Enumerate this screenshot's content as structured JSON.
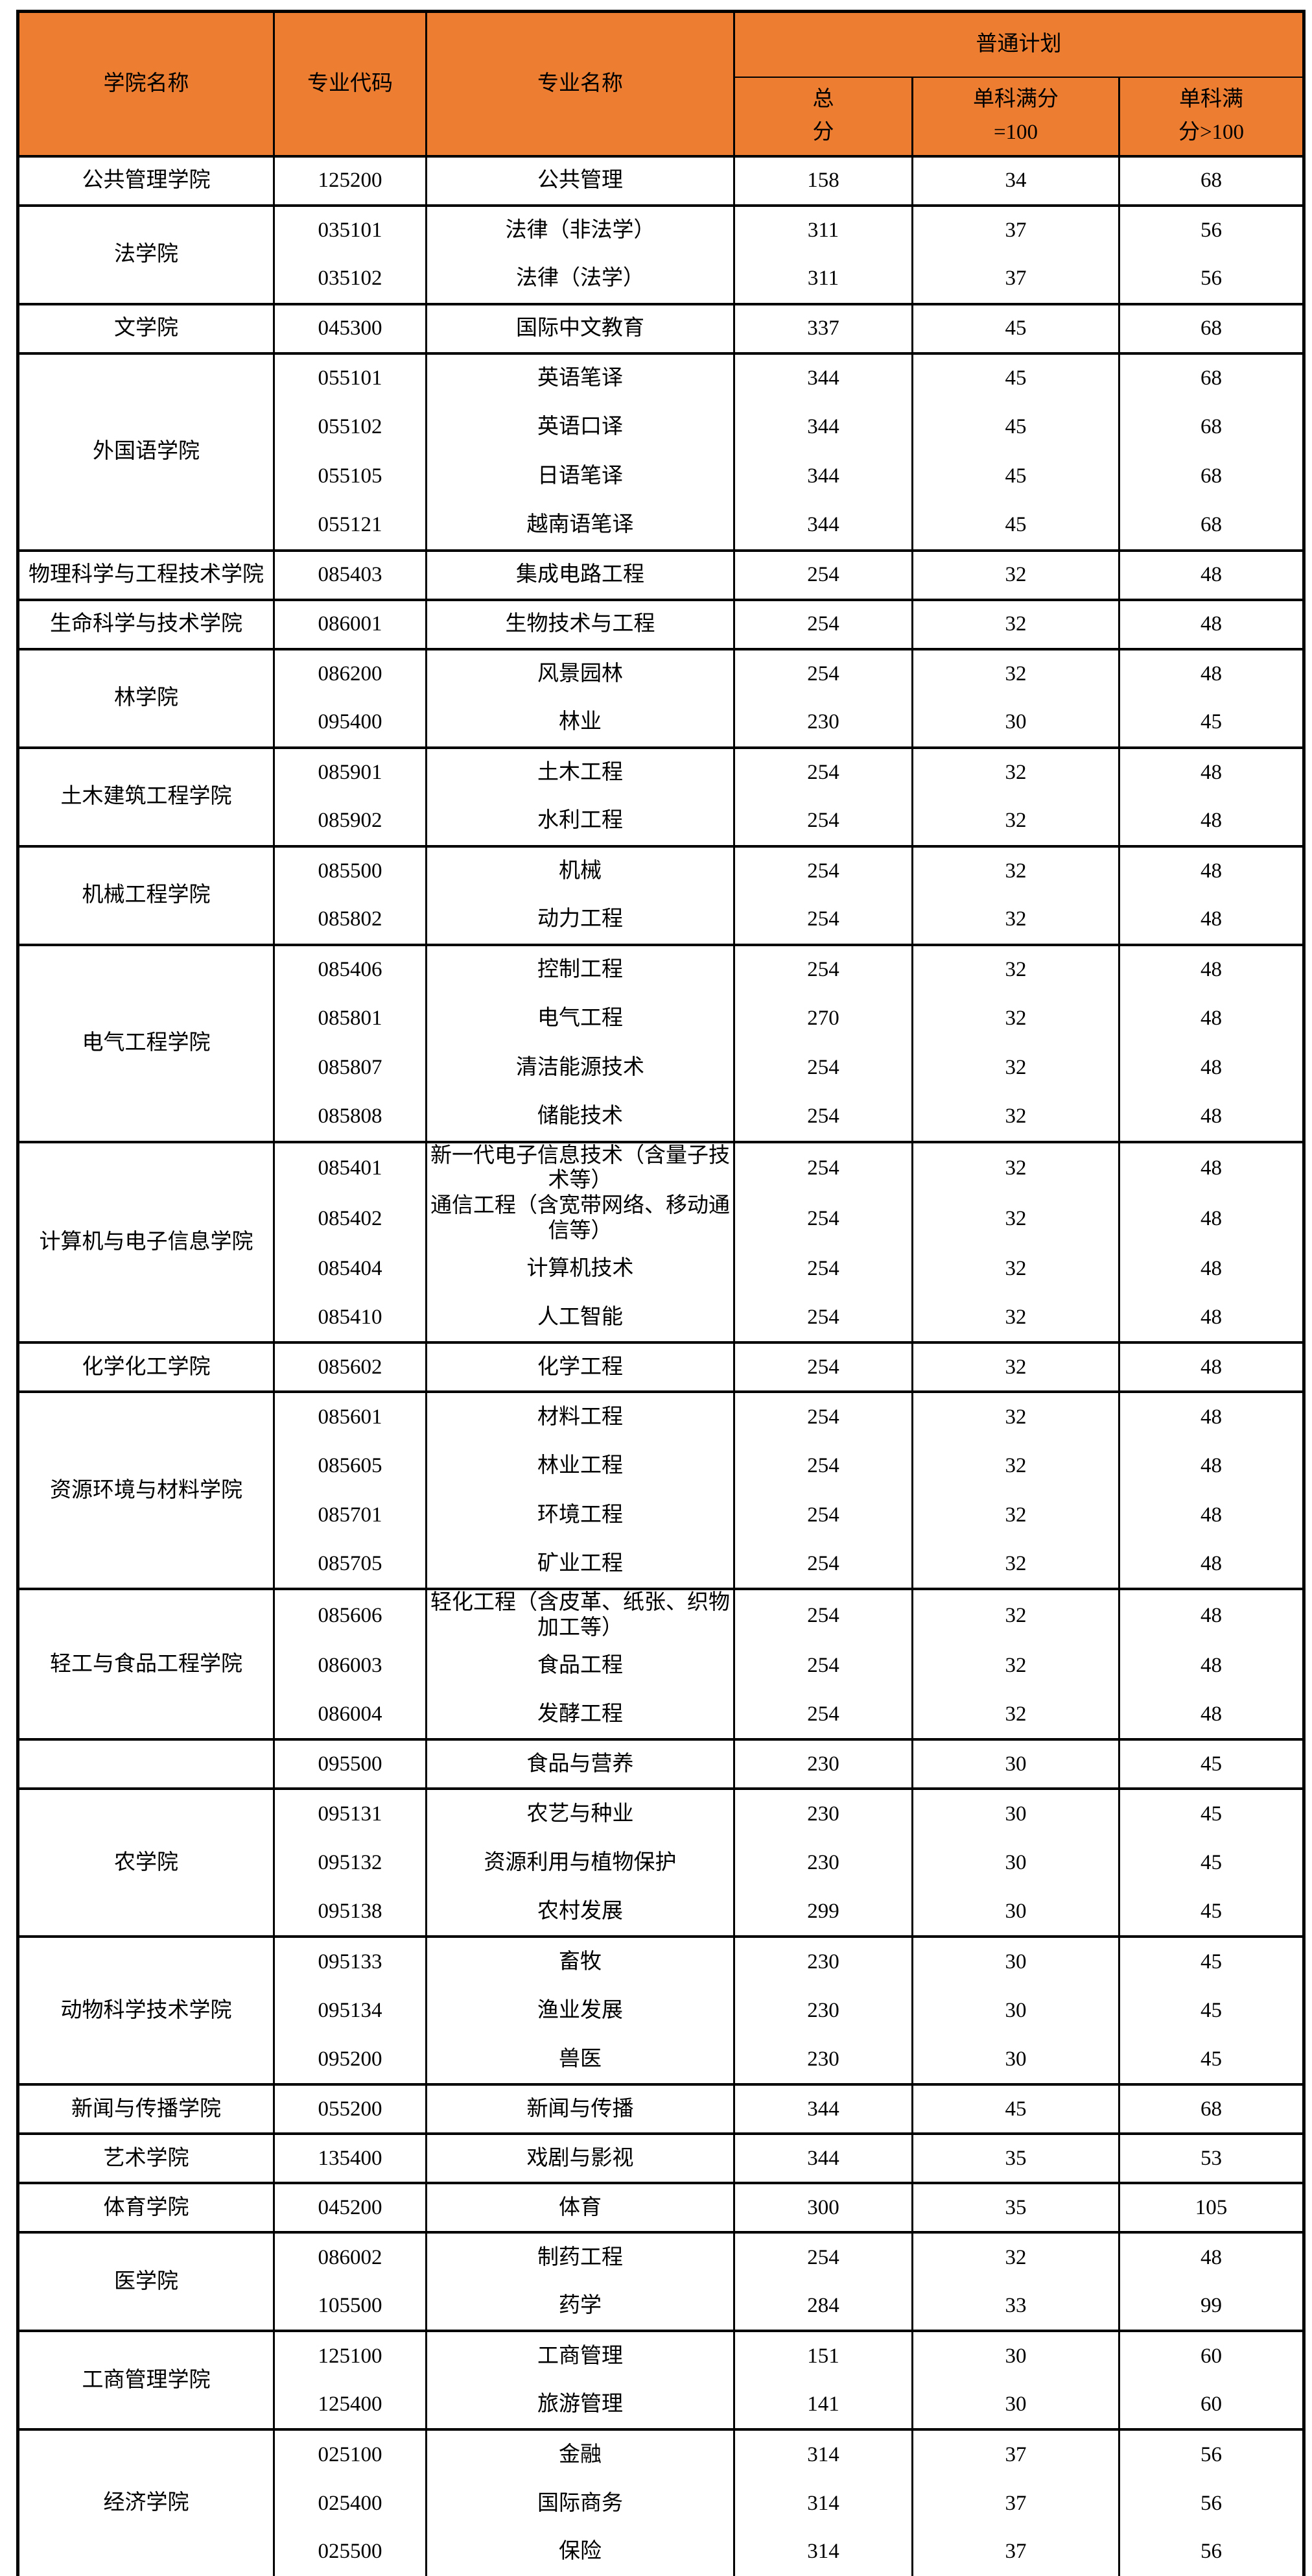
{
  "colors": {
    "header_bg": "#ED7D31",
    "border": "#000000",
    "text": "#000000"
  },
  "table": {
    "header": {
      "college": "学院名称",
      "code": "专业代码",
      "major": "专业名称",
      "plan": "普通计划",
      "total": "总分",
      "single_eq_100": "单科满分=100",
      "single_gt_100": "单科满分>100"
    },
    "groups": [
      {
        "college": "公共管理学院",
        "majors": [
          {
            "code": "125200",
            "name": "公共管理",
            "total": 158,
            "s100": 34,
            "sgt100": 68
          }
        ]
      },
      {
        "college": "法学院",
        "majors": [
          {
            "code": "035101",
            "name": "法律（非法学）",
            "total": 311,
            "s100": 37,
            "sgt100": 56
          },
          {
            "code": "035102",
            "name": "法律（法学）",
            "total": 311,
            "s100": 37,
            "sgt100": 56
          }
        ]
      },
      {
        "college": "文学院",
        "majors": [
          {
            "code": "045300",
            "name": "国际中文教育",
            "total": 337,
            "s100": 45,
            "sgt100": 68
          }
        ]
      },
      {
        "college": "外国语学院",
        "majors": [
          {
            "code": "055101",
            "name": "英语笔译",
            "total": 344,
            "s100": 45,
            "sgt100": 68
          },
          {
            "code": "055102",
            "name": "英语口译",
            "total": 344,
            "s100": 45,
            "sgt100": 68
          },
          {
            "code": "055105",
            "name": "日语笔译",
            "total": 344,
            "s100": 45,
            "sgt100": 68
          },
          {
            "code": "055121",
            "name": "越南语笔译",
            "total": 344,
            "s100": 45,
            "sgt100": 68
          }
        ]
      },
      {
        "college": "物理科学与工程技术学院",
        "majors": [
          {
            "code": "085403",
            "name": "集成电路工程",
            "total": 254,
            "s100": 32,
            "sgt100": 48
          }
        ]
      },
      {
        "college": "生命科学与技术学院",
        "majors": [
          {
            "code": "086001",
            "name": "生物技术与工程",
            "total": 254,
            "s100": 32,
            "sgt100": 48
          }
        ]
      },
      {
        "college": "林学院",
        "majors": [
          {
            "code": "086200",
            "name": "风景园林",
            "total": 254,
            "s100": 32,
            "sgt100": 48
          },
          {
            "code": "095400",
            "name": "林业",
            "total": 230,
            "s100": 30,
            "sgt100": 45
          }
        ]
      },
      {
        "college": "土木建筑工程学院",
        "majors": [
          {
            "code": "085901",
            "name": "土木工程",
            "total": 254,
            "s100": 32,
            "sgt100": 48
          },
          {
            "code": "085902",
            "name": "水利工程",
            "total": 254,
            "s100": 32,
            "sgt100": 48
          }
        ]
      },
      {
        "college": "机械工程学院",
        "majors": [
          {
            "code": "085500",
            "name": "机械",
            "total": 254,
            "s100": 32,
            "sgt100": 48
          },
          {
            "code": "085802",
            "name": "动力工程",
            "total": 254,
            "s100": 32,
            "sgt100": 48
          }
        ]
      },
      {
        "college": "电气工程学院",
        "majors": [
          {
            "code": "085406",
            "name": "控制工程",
            "total": 254,
            "s100": 32,
            "sgt100": 48
          },
          {
            "code": "085801",
            "name": "电气工程",
            "total": 270,
            "s100": 32,
            "sgt100": 48
          },
          {
            "code": "085807",
            "name": "清洁能源技术",
            "total": 254,
            "s100": 32,
            "sgt100": 48
          },
          {
            "code": "085808",
            "name": "储能技术",
            "total": 254,
            "s100": 32,
            "sgt100": 48
          }
        ]
      },
      {
        "college": "计算机与电子信息学院",
        "majors": [
          {
            "code": "085401",
            "name": "新一代电子信息技术（含量子技术等）",
            "total": 254,
            "s100": 32,
            "sgt100": 48
          },
          {
            "code": "085402",
            "name": "通信工程（含宽带网络、移动通信等）",
            "total": 254,
            "s100": 32,
            "sgt100": 48
          },
          {
            "code": "085404",
            "name": "计算机技术",
            "total": 254,
            "s100": 32,
            "sgt100": 48
          },
          {
            "code": "085410",
            "name": "人工智能",
            "total": 254,
            "s100": 32,
            "sgt100": 48
          }
        ]
      },
      {
        "college": "化学化工学院",
        "majors": [
          {
            "code": "085602",
            "name": "化学工程",
            "total": 254,
            "s100": 32,
            "sgt100": 48
          }
        ]
      },
      {
        "college": "资源环境与材料学院",
        "majors": [
          {
            "code": "085601",
            "name": "材料工程",
            "total": 254,
            "s100": 32,
            "sgt100": 48
          },
          {
            "code": "085605",
            "name": "林业工程",
            "total": 254,
            "s100": 32,
            "sgt100": 48
          },
          {
            "code": "085701",
            "name": "环境工程",
            "total": 254,
            "s100": 32,
            "sgt100": 48
          },
          {
            "code": "085705",
            "name": "矿业工程",
            "total": 254,
            "s100": 32,
            "sgt100": 48
          }
        ]
      },
      {
        "college": "轻工与食品工程学院",
        "majors": [
          {
            "code": "085606",
            "name": "轻化工程（含皮革、纸张、织物加工等）",
            "total": 254,
            "s100": 32,
            "sgt100": 48
          },
          {
            "code": "086003",
            "name": "食品工程",
            "total": 254,
            "s100": 32,
            "sgt100": 48
          },
          {
            "code": "086004",
            "name": "发酵工程",
            "total": 254,
            "s100": 32,
            "sgt100": 48
          }
        ]
      },
      {
        "college": "",
        "majors": [
          {
            "code": "095500",
            "name": "食品与营养",
            "total": 230,
            "s100": 30,
            "sgt100": 45
          }
        ]
      },
      {
        "college": "农学院",
        "majors": [
          {
            "code": "095131",
            "name": "农艺与种业",
            "total": 230,
            "s100": 30,
            "sgt100": 45
          },
          {
            "code": "095132",
            "name": "资源利用与植物保护",
            "total": 230,
            "s100": 30,
            "sgt100": 45
          },
          {
            "code": "095138",
            "name": "农村发展",
            "total": 299,
            "s100": 30,
            "sgt100": 45
          }
        ]
      },
      {
        "college": "动物科学技术学院",
        "majors": [
          {
            "code": "095133",
            "name": "畜牧",
            "total": 230,
            "s100": 30,
            "sgt100": 45
          },
          {
            "code": "095134",
            "name": "渔业发展",
            "total": 230,
            "s100": 30,
            "sgt100": 45
          },
          {
            "code": "095200",
            "name": "兽医",
            "total": 230,
            "s100": 30,
            "sgt100": 45
          }
        ]
      },
      {
        "college": "新闻与传播学院",
        "majors": [
          {
            "code": "055200",
            "name": "新闻与传播",
            "total": 344,
            "s100": 45,
            "sgt100": 68
          }
        ]
      },
      {
        "college": "艺术学院",
        "majors": [
          {
            "code": "135400",
            "name": "戏剧与影视",
            "total": 344,
            "s100": 35,
            "sgt100": 53
          }
        ]
      },
      {
        "college": "体育学院",
        "majors": [
          {
            "code": "045200",
            "name": "体育",
            "total": 300,
            "s100": 35,
            "sgt100": 105
          }
        ]
      },
      {
        "college": "医学院",
        "majors": [
          {
            "code": "086002",
            "name": "制药工程",
            "total": 254,
            "s100": 32,
            "sgt100": 48
          },
          {
            "code": "105500",
            "name": "药学",
            "total": 284,
            "s100": 33,
            "sgt100": 99
          }
        ]
      },
      {
        "college": "工商管理学院",
        "majors": [
          {
            "code": "125100",
            "name": "工商管理",
            "total": 151,
            "s100": 30,
            "sgt100": 60
          },
          {
            "code": "125400",
            "name": "旅游管理",
            "total": 141,
            "s100": 30,
            "sgt100": 60
          }
        ]
      },
      {
        "college": "经济学院",
        "majors": [
          {
            "code": "025100",
            "name": "金融",
            "total": 314,
            "s100": 37,
            "sgt100": 56
          },
          {
            "code": "025400",
            "name": "国际商务",
            "total": 314,
            "s100": 37,
            "sgt100": 56
          },
          {
            "code": "025500",
            "name": "保险",
            "total": 314,
            "s100": 37,
            "sgt100": 56
          }
        ]
      }
    ]
  }
}
